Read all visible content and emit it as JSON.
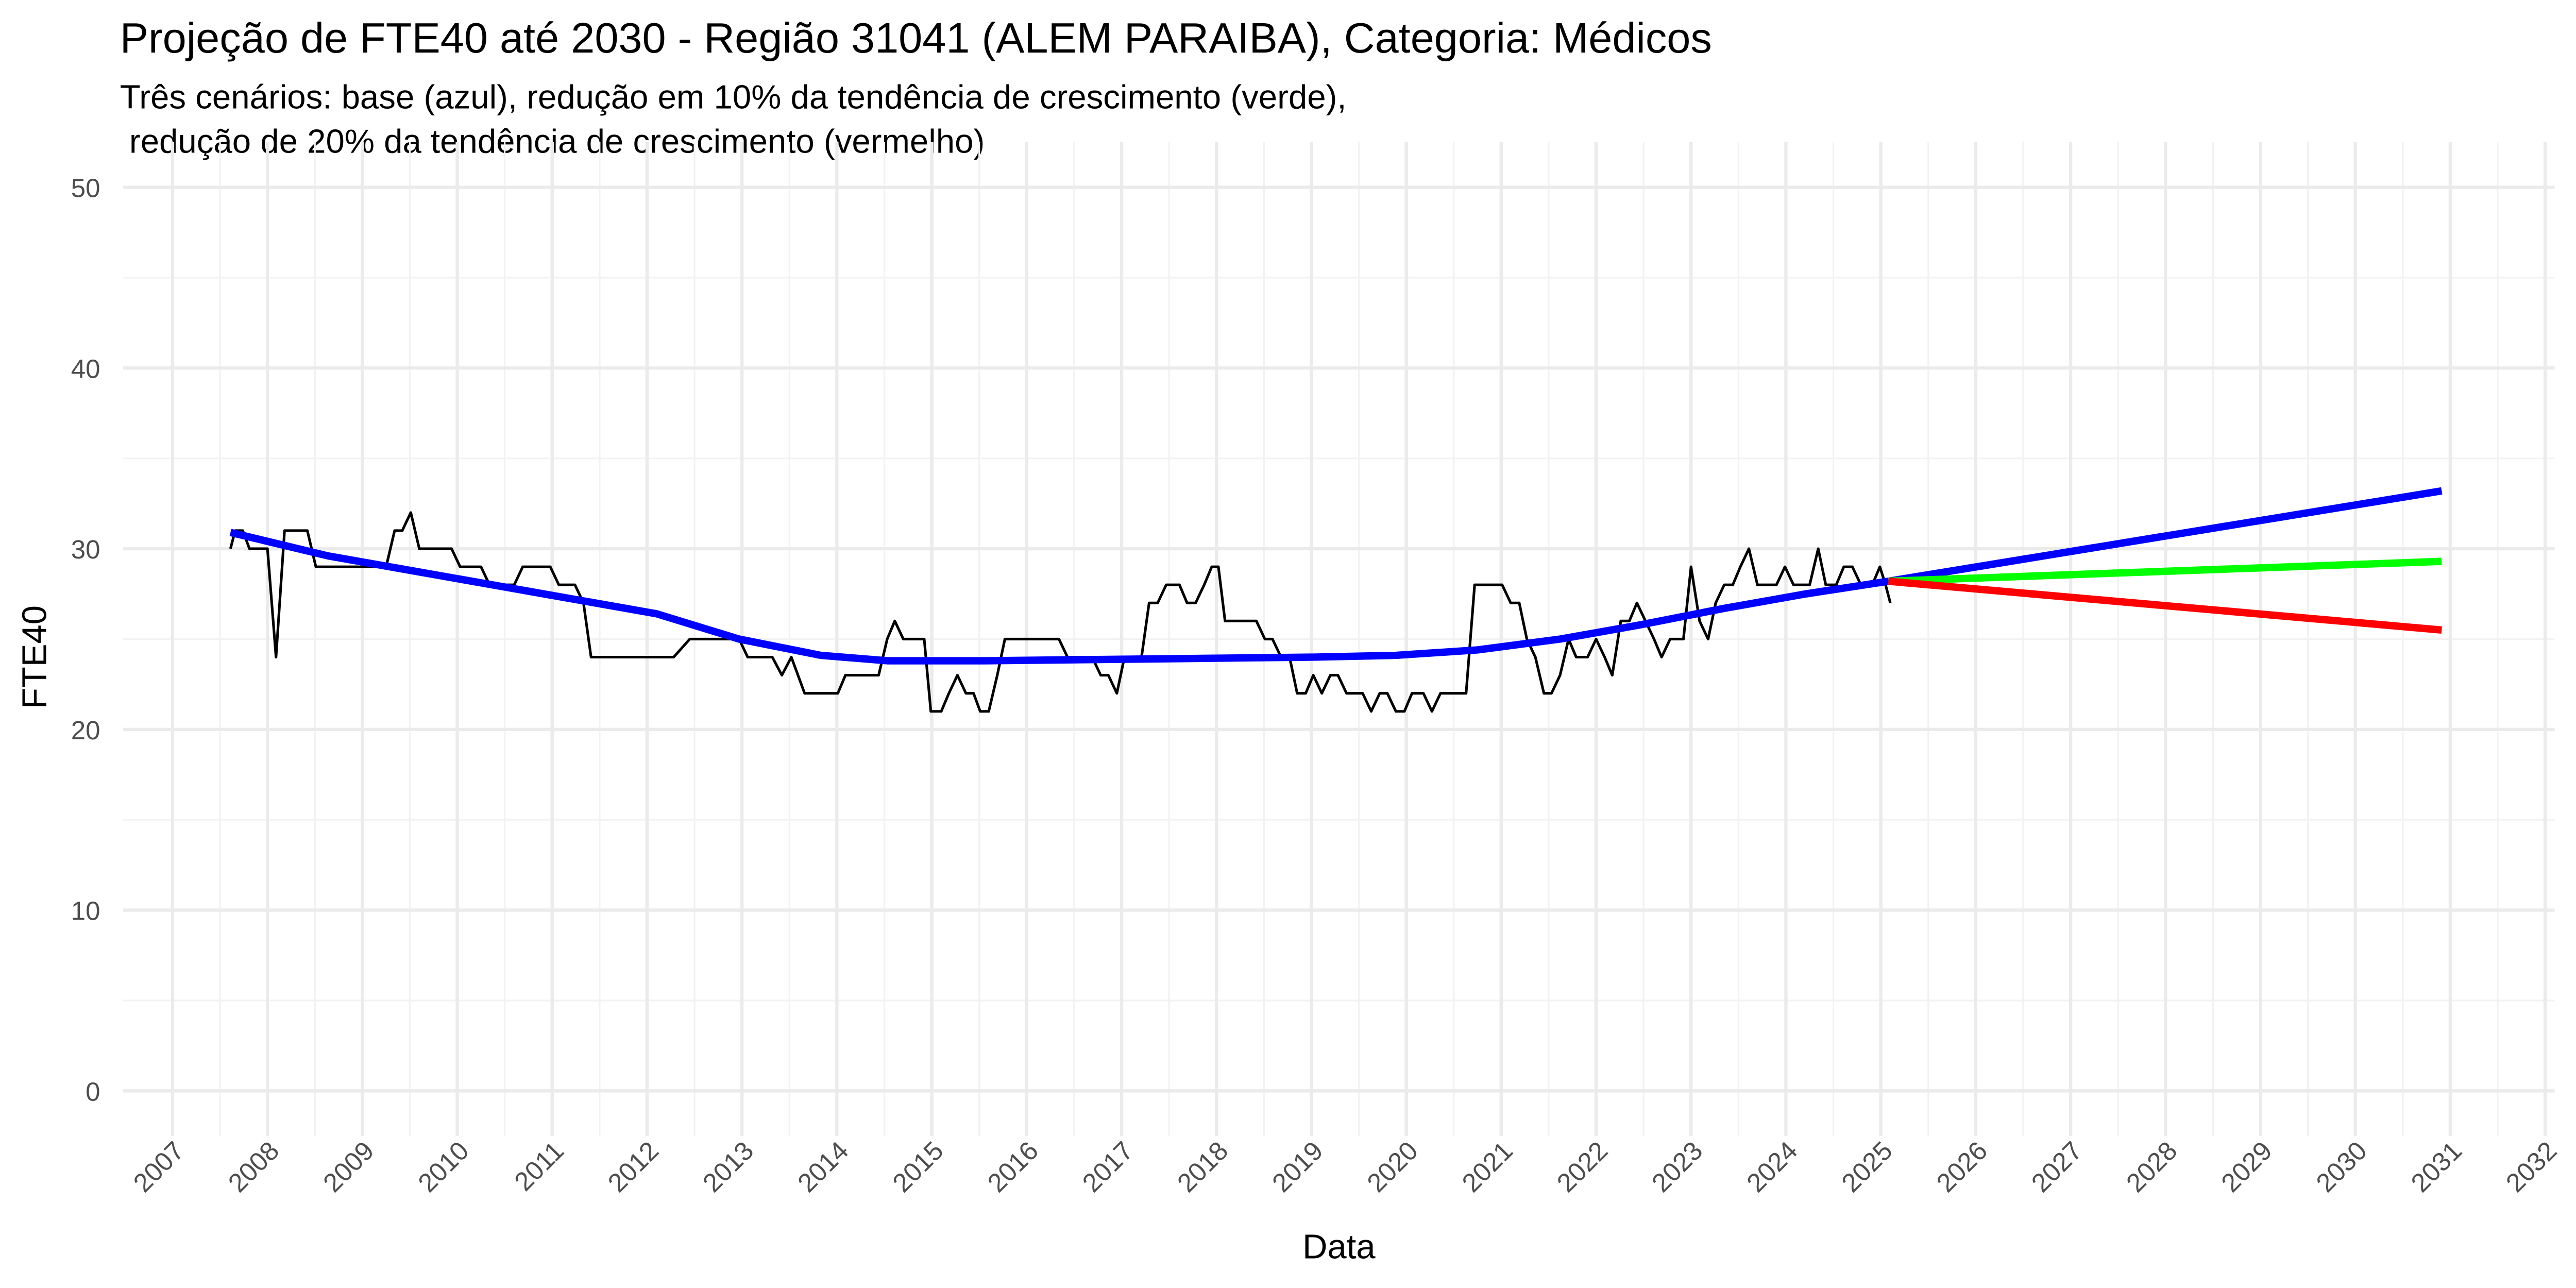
{
  "chart_data": {
    "type": "line",
    "title": "Projeção de FTE40 até 2030 - Região 31041 (ALEM  PARAIBA), Categoria: Médicos",
    "subtitle": [
      "Três cenários: base (azul), redução em 10% da tendência de crescimento (verde),",
      " redução de 20% da tendência de crescimento (vermelho)"
    ],
    "xlabel": "Data",
    "ylabel": "FTE40",
    "xlim": [
      2006.48,
      2032.1
    ],
    "ylim": [
      -2.5,
      52.5
    ],
    "xticks": [
      2007,
      2008,
      2009,
      2010,
      2011,
      2012,
      2013,
      2014,
      2015,
      2016,
      2017,
      2018,
      2019,
      2020,
      2021,
      2022,
      2023,
      2024,
      2025,
      2026,
      2027,
      2028,
      2029,
      2030,
      2031,
      2032
    ],
    "yticks": [
      0,
      10,
      20,
      30,
      40,
      50
    ],
    "yminorticks": [
      5,
      15,
      25,
      35,
      45
    ],
    "grid": true,
    "series": [
      {
        "color": "#000000",
        "width": 1.6,
        "x": [
          2007.61,
          2007.66,
          2007.74,
          2007.81,
          2007.92,
          2008.0,
          2008.09,
          2008.18,
          2008.26,
          2008.42,
          2008.51,
          2008.64,
          2009.25,
          2009.34,
          2009.42,
          2009.51,
          2009.6,
          2009.68,
          2009.94,
          2010.03,
          2010.25,
          2010.34,
          2010.6,
          2010.69,
          2010.98,
          2011.07,
          2011.24,
          2011.33,
          2011.41,
          2012.28,
          2012.45,
          2012.88,
          2012.97,
          2013.06,
          2013.32,
          2013.42,
          2013.52,
          2013.66,
          2014.01,
          2014.09,
          2014.44,
          2014.53,
          2014.61,
          2014.7,
          2014.92,
          2014.99,
          2015.1,
          2015.18,
          2015.27,
          2015.36,
          2015.44,
          2015.51,
          2015.6,
          2015.69,
          2015.77,
          2016.34,
          2016.43,
          2016.69,
          2016.78,
          2016.86,
          2016.95,
          2017.03,
          2017.21,
          2017.29,
          2017.38,
          2017.47,
          2017.61,
          2017.69,
          2017.78,
          2017.87,
          2017.95,
          2018.02,
          2018.09,
          2018.42,
          2018.51,
          2018.59,
          2018.68,
          2018.77,
          2018.85,
          2018.94,
          2019.02,
          2019.11,
          2019.2,
          2019.28,
          2019.37,
          2019.46,
          2019.54,
          2019.63,
          2019.72,
          2019.8,
          2019.89,
          2019.98,
          2020.06,
          2020.18,
          2020.27,
          2020.36,
          2020.63,
          2020.72,
          2021.01,
          2021.1,
          2021.19,
          2021.27,
          2021.36,
          2021.45,
          2021.53,
          2021.62,
          2021.71,
          2021.79,
          2021.91,
          2022.0,
          2022.09,
          2022.17,
          2022.26,
          2022.35,
          2022.43,
          2022.52,
          2022.61,
          2022.69,
          2022.78,
          2022.92,
          2023.0,
          2023.09,
          2023.18,
          2023.26,
          2023.35,
          2023.44,
          2023.52,
          2023.61,
          2023.7,
          2023.9,
          2023.99,
          2024.08,
          2024.25,
          2024.34,
          2024.42,
          2024.53,
          2024.61,
          2024.7,
          2024.79,
          2024.91,
          2024.99,
          2025.05,
          2025.1
        ],
        "values": [
          30,
          31,
          31,
          30,
          30,
          30,
          24,
          31,
          31,
          31,
          29,
          29,
          29,
          31,
          31,
          32,
          30,
          30,
          30,
          29,
          29,
          28,
          28,
          29,
          29,
          28,
          28,
          27,
          24,
          24,
          25,
          25,
          25,
          24,
          24,
          23,
          24,
          22,
          22,
          23,
          23,
          25,
          26,
          25,
          25,
          21,
          21,
          22,
          23,
          22,
          22,
          21,
          21,
          23,
          25,
          25,
          24,
          24,
          23,
          23,
          22,
          24,
          24,
          27,
          27,
          28,
          28,
          27,
          27,
          28,
          29,
          29,
          26,
          26,
          25,
          25,
          24,
          24,
          22,
          22,
          23,
          22,
          23,
          23,
          22,
          22,
          22,
          21,
          22,
          22,
          21,
          21,
          22,
          22,
          21,
          22,
          22,
          28,
          28,
          27,
          27,
          25,
          24,
          22,
          22,
          23,
          25,
          24,
          24,
          25,
          24,
          23,
          26,
          26,
          27,
          26,
          25,
          24,
          25,
          25,
          29,
          26,
          25,
          27,
          28,
          28,
          29,
          30,
          28,
          28,
          29,
          28,
          28,
          30,
          28,
          28,
          29,
          29,
          28,
          28,
          29,
          28,
          27
        ]
      },
      {
        "color": "#0000ff",
        "width": 4.5,
        "x": [
          2007.61,
          2008.64,
          2010.37,
          2012.1,
          2012.97,
          2013.83,
          2014.53,
          2015.56,
          2017.29,
          2019.02,
          2019.89,
          2020.75,
          2021.62,
          2022.48,
          2023.35,
          2024.21,
          2025.08,
          2030.91
        ],
        "values": [
          30.9,
          29.6,
          28.0,
          26.4,
          25.0,
          24.1,
          23.8,
          23.8,
          23.9,
          24.0,
          24.1,
          24.4,
          25.0,
          25.8,
          26.7,
          27.5,
          28.2,
          33.2
        ]
      },
      {
        "color": "#00ff00",
        "width": 4.5,
        "x": [
          2025.08,
          2030.91
        ],
        "values": [
          28.2,
          29.3
        ]
      },
      {
        "color": "#ff0000",
        "width": 4.5,
        "x": [
          2025.08,
          2030.91
        ],
        "values": [
          28.2,
          25.5
        ]
      }
    ]
  }
}
